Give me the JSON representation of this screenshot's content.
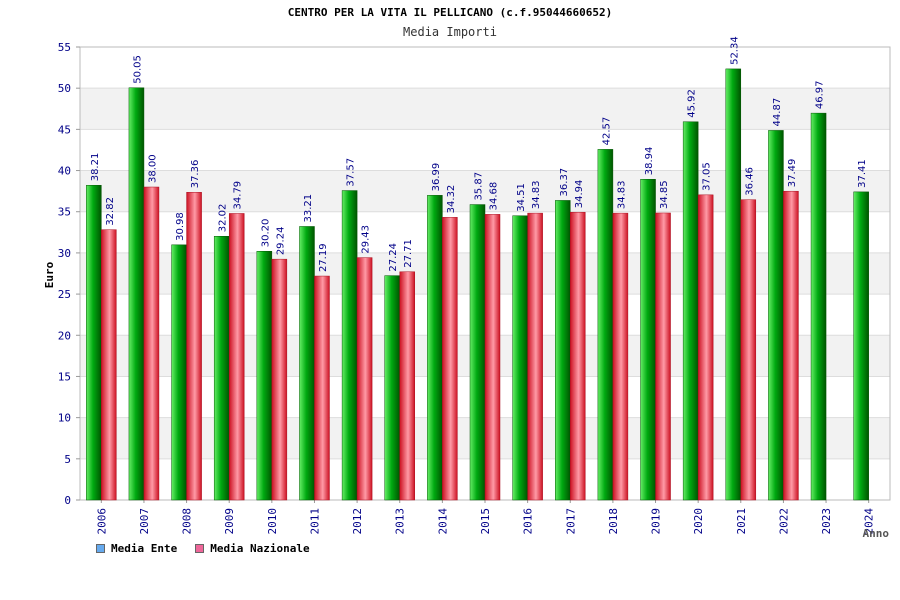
{
  "chart_data": {
    "type": "bar",
    "title": "CENTRO PER LA VITA IL PELLICANO (c.f.95044660652)",
    "subtitle": "Media Importi",
    "xlabel": "Anno",
    "ylabel": "Euro",
    "ylim": [
      0,
      55
    ],
    "yticks": [
      0,
      5,
      10,
      15,
      20,
      25,
      30,
      35,
      40,
      45,
      50,
      55
    ],
    "grid": true,
    "legend_position": "bottom-left",
    "categories": [
      "2006",
      "2007",
      "2008",
      "2009",
      "2010",
      "2011",
      "2012",
      "2013",
      "2014",
      "2015",
      "2016",
      "2017",
      "2018",
      "2019",
      "2020",
      "2021",
      "2022",
      "2023",
      "2024"
    ],
    "series": [
      {
        "name": "Media Ente",
        "color": "#00aa22",
        "values": [
          38.21,
          50.05,
          30.98,
          32.02,
          30.2,
          33.21,
          37.57,
          27.24,
          36.99,
          35.87,
          34.51,
          36.37,
          42.57,
          38.94,
          45.92,
          52.34,
          44.87,
          46.97,
          37.41
        ],
        "labels": [
          "38.21",
          "50.05",
          "30.98",
          "32.02",
          "30.20",
          "33.21",
          "37.57",
          "27.24",
          "36.99",
          "35.87",
          "34.51",
          "36.37",
          "42.57",
          "38.94",
          "45.92",
          "52.34",
          "44.87",
          "46.97",
          "37.41"
        ]
      },
      {
        "name": "Media Nazionale",
        "color": "#dd2233",
        "values": [
          32.82,
          38.0,
          37.36,
          34.79,
          29.24,
          27.19,
          29.43,
          27.71,
          34.32,
          34.68,
          34.83,
          34.94,
          34.83,
          34.85,
          37.05,
          36.46,
          37.49,
          null,
          null
        ],
        "labels": [
          "32.82",
          "38.00",
          "37.36",
          "34.79",
          "29.24",
          "27.19",
          "29.43",
          "27.71",
          "34.32",
          "34.68",
          "34.83",
          "34.94",
          "34.83",
          "34.85",
          "37.05",
          "36.46",
          "37.49",
          null,
          null
        ]
      }
    ]
  },
  "legend": {
    "items": [
      {
        "label": "Media Ente",
        "color": "#66aaee"
      },
      {
        "label": "Media Nazionale",
        "color": "#ee6699"
      }
    ]
  }
}
